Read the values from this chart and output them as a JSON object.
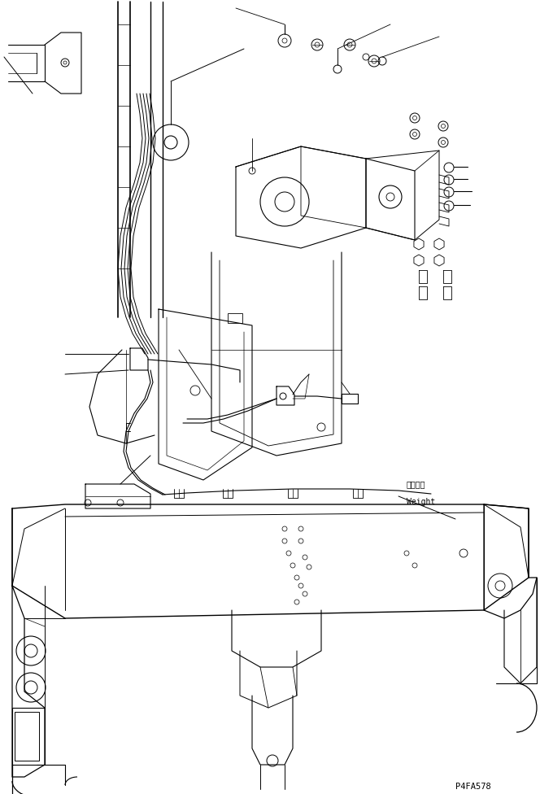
{
  "background_color": "#ffffff",
  "line_color": "#000000",
  "fig_width": 6.64,
  "fig_height": 9.76,
  "dpi": 100,
  "annotation_weight_jp": "ウェイト",
  "annotation_weight_en": "Weight",
  "part_number": "P4FA578",
  "text_color": "#000000"
}
